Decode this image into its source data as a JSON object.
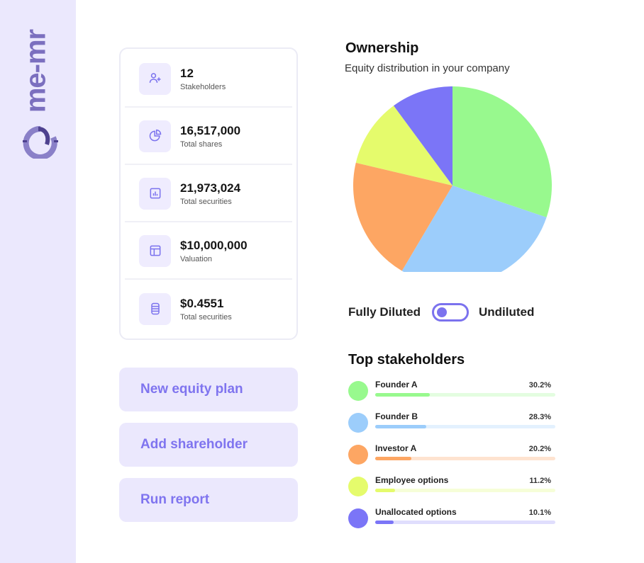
{
  "brand": {
    "logo_text": "me-mr"
  },
  "stats": [
    {
      "value": "12",
      "label": "Stakeholders",
      "icon": "user-plus-icon"
    },
    {
      "value": "16,517,000",
      "label": "Total shares",
      "icon": "pie-chart-icon"
    },
    {
      "value": "21,973,024",
      "label": "Total securities",
      "icon": "bar-chart-icon"
    },
    {
      "value": "$10,000,000",
      "label": "Valuation",
      "icon": "layout-icon"
    },
    {
      "value": "$0.4551",
      "label": "Total securities",
      "icon": "database-icon"
    }
  ],
  "actions": {
    "new_equity_plan": "New equity plan",
    "add_shareholder": "Add shareholder",
    "run_report": "Run report"
  },
  "ownership": {
    "title": "Ownership",
    "subtitle": "Equity distribution in your company",
    "toggle_left": "Fully Diluted",
    "toggle_right": "Undiluted",
    "toggle_state": "fully-diluted"
  },
  "top": {
    "title": "Top stakeholders"
  },
  "chart_data": {
    "type": "pie",
    "title": "Ownership",
    "categories": [
      "Founder A",
      "Founder B",
      "Investor A",
      "Employee options",
      "Unallocated options"
    ],
    "values": [
      30.2,
      28.3,
      20.2,
      11.2,
      10.1
    ],
    "labels": [
      "30.2%",
      "28.3%",
      "20.2%",
      "11.2%",
      "10.1%"
    ],
    "colors": [
      "#98f98e",
      "#9ccdfb",
      "#fda663",
      "#e5fb6c",
      "#7b75f7"
    ],
    "track_colors": [
      "#e3fde0",
      "#e3f1fe",
      "#fee3d0",
      "#f6fed8",
      "#e0defd"
    ]
  }
}
